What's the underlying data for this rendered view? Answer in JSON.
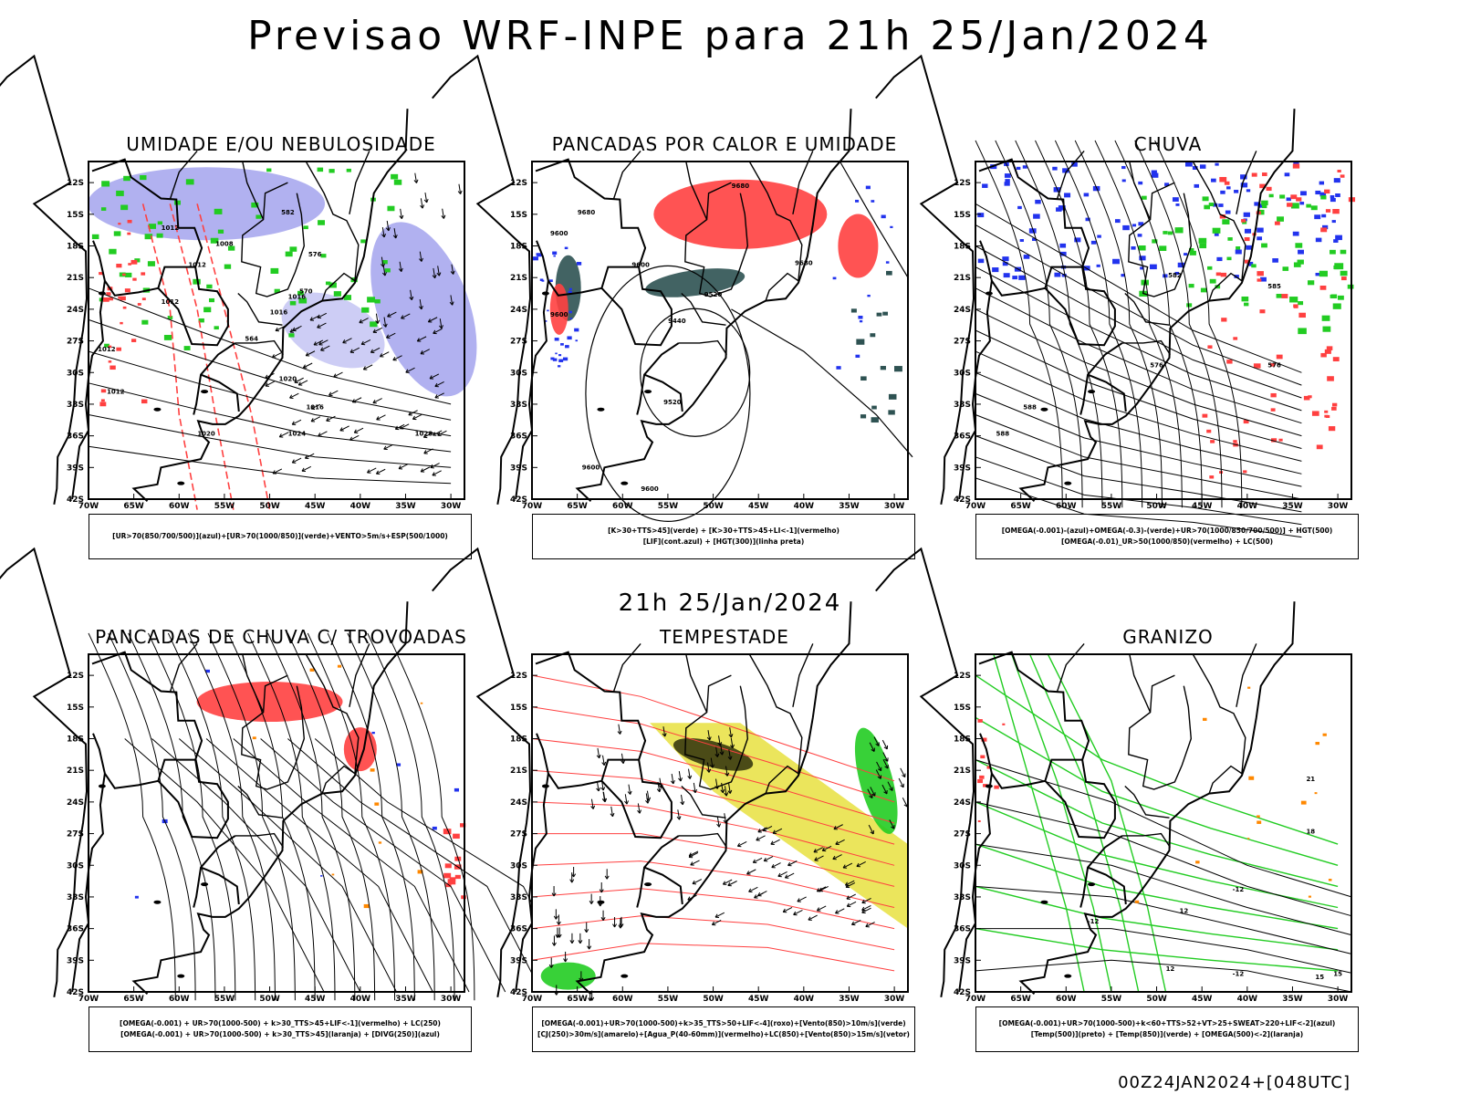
{
  "title": "Previsao WRF-INPE  para 21h 25/Jan/2024",
  "mid_date": "21h 25/Jan/2024",
  "footer": "00Z24JAN2024+[048UTC]",
  "axes": {
    "lat_labels": [
      "12S",
      "15S",
      "18S",
      "21S",
      "24S",
      "27S",
      "30S",
      "33S",
      "36S",
      "39S",
      "42S"
    ],
    "lon_labels": [
      "70W",
      "65W",
      "60W",
      "55W",
      "50W",
      "45W",
      "40W",
      "35W",
      "30W"
    ]
  },
  "colors": {
    "rh_blue": "#a9a9ee",
    "green": "#22cc22",
    "red": "#ff4040",
    "teal": "#2e5252",
    "blue": "#2233ee",
    "yellow": "#e8e040",
    "orange": "#ff8800",
    "black": "#000000"
  },
  "panels": [
    {
      "title": "UMIDADE E/OU NEBULOSIDADE",
      "legend": [
        "[UR>70(850/700/500)](azul)+[UR>70(1000/850)](verde)+VENTO>5m/s+ESP(500/1000)"
      ],
      "contour_labels": [
        "1012",
        "1008",
        "1012",
        "1016",
        "1016",
        "1012",
        "1020",
        "1016",
        "1024",
        "1028",
        "1020",
        "1012",
        "1012",
        "576",
        "570",
        "564",
        "582"
      ]
    },
    {
      "title": "PANCADAS POR CALOR E UMIDADE",
      "legend": [
        "[K>30+TTS>45](verde) + [K>30+TTS>45+LI<-1](vermelho)",
        "[LIF](cont.azul) + [HGT(300)](linha preta)"
      ],
      "contour_labels": [
        "9680",
        "9680",
        "9600",
        "9600",
        "9600",
        "9520",
        "9440",
        "9520",
        "9600",
        "9600",
        "9680"
      ]
    },
    {
      "title": "CHUVA",
      "legend": [
        "[OMEGA(-0.001)-(azul)+OMEGA(-0.3)-(verde)+UR>70(1000/850/700/500)] + HGT(500)",
        "[OMEGA(-0.01)_UR>50(1000/850)(vermelho) + LC(500)"
      ],
      "contour_labels": [
        "582",
        "588",
        "576",
        "588",
        "576",
        "585"
      ]
    },
    {
      "title": "PANCADAS DE CHUVA C/ TROVOADAS",
      "legend": [
        "[OMEGA(-0.001) + UR>70(1000-500) + k>30_TTS>45+LIF<-1](vermelho) + LC(250)",
        "[OMEGA(-0.001) + UR>70(1000-500) + k>30_TTS>45](laranja) + [DIVG(250)](azul)"
      ],
      "contour_labels": []
    },
    {
      "title": "TEMPESTADE",
      "legend": [
        "[OMEGA(-0.001)+UR>70(1000-500)+k>35_TTS>50+LIF<-4](roxo)+[Vento(850)>10m/s](verde)",
        "[CJ(250)>30m/s](amarelo)+[Agua_P(40-60mm)](vermelho)+LC(850)+[Vento(850)>15m/s](vetor)"
      ],
      "contour_labels": []
    },
    {
      "title": "GRANIZO",
      "legend": [
        "[OMEGA(-0.001)+UR>70(1000-500)+k<60+TTS>52+VT>25+SWEAT>220+LIF<-2](azul)",
        "[Temp(500)](preto) + [Temp(850)](verde) + [OMEGA(500)<-2](laranja)"
      ],
      "contour_labels": [
        "-12",
        "-12",
        "12",
        "12",
        "15",
        "18",
        "21",
        "15",
        "-12"
      ]
    }
  ]
}
